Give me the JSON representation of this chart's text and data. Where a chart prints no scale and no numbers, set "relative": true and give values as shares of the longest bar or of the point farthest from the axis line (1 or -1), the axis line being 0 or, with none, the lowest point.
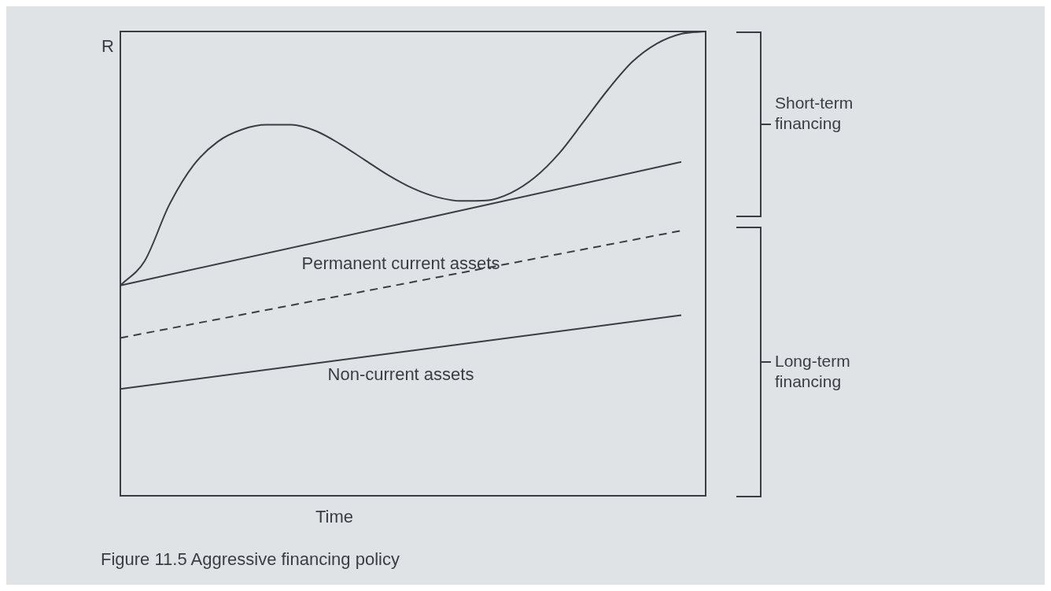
{
  "chart_data": {
    "type": "line",
    "title": "Figure 11.5 Aggressive financing policy",
    "xlabel": "Time",
    "ylabel": "R",
    "relative": true,
    "legend": false,
    "marker": "none",
    "categories": [
      null,
      null,
      null,
      null,
      null,
      null,
      null,
      null,
      null,
      null,
      null,
      null,
      null,
      null,
      null,
      null,
      null,
      null,
      null,
      null,
      null,
      null,
      null,
      null,
      null
    ],
    "series": [
      {
        "name": "Non-current assets",
        "color": "#3a3d42",
        "values": [
          0.23,
          null,
          null,
          null,
          null,
          null,
          null,
          null,
          null,
          null,
          null,
          null,
          null,
          null,
          null,
          null,
          null,
          null,
          null,
          null,
          null,
          null,
          null,
          0.389,
          null
        ]
      },
      {
        "color": "#3a3d42",
        "line_style": "dashed",
        "values": [
          0.34,
          null,
          null,
          null,
          null,
          null,
          null,
          null,
          null,
          null,
          null,
          null,
          null,
          null,
          null,
          null,
          null,
          null,
          null,
          null,
          null,
          null,
          null,
          0.571,
          null
        ]
      },
      {
        "name": "Permanent current assets",
        "color": "#3a3d42",
        "values": [
          0.453,
          null,
          null,
          null,
          null,
          null,
          null,
          null,
          null,
          null,
          null,
          null,
          null,
          null,
          null,
          null,
          null,
          null,
          null,
          null,
          null,
          null,
          null,
          0.719,
          null
        ]
      },
      {
        "color": "#3a3d42",
        "values": [
          0.453,
          0.506,
          0.626,
          0.712,
          0.763,
          0.789,
          0.799,
          0.799,
          0.786,
          0.758,
          0.724,
          0.69,
          0.662,
          0.643,
          0.635,
          0.636,
          0.652,
          0.686,
          0.738,
          0.806,
          0.875,
          0.935,
          0.974,
          0.995,
          1
        ]
      }
    ],
    "annotations": [
      "Short-term financing",
      "Long-term financing"
    ]
  }
}
